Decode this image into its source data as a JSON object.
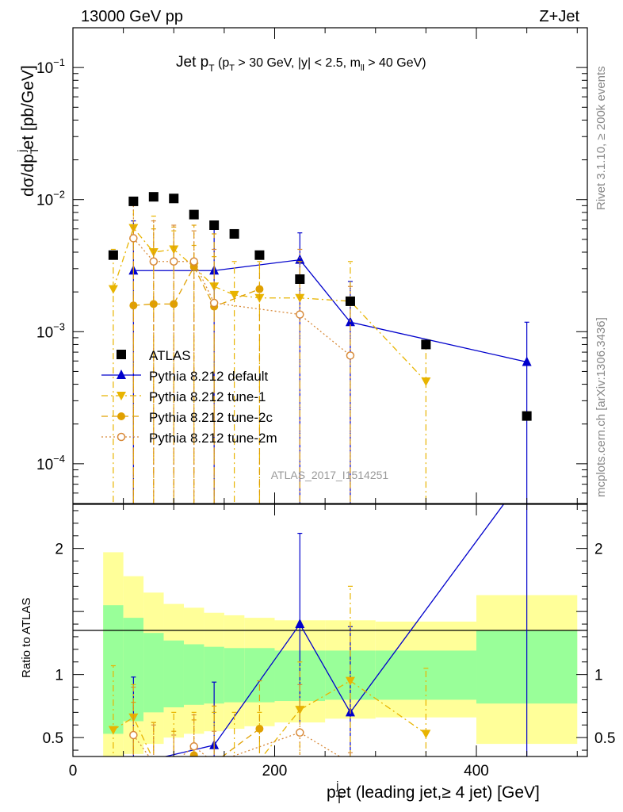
{
  "header": {
    "left": "13000 GeV pp",
    "right": "Z+Jet"
  },
  "side_labels": {
    "rivet": "Rivet 3.1.10, ≥ 200k events",
    "mcplots": "mcplots.cern.ch [arXiv:1306.3436]"
  },
  "chart_data": {
    "type": "scatter",
    "title": "Jet pT (pT > 30 GeV, |y| < 2.5, mll > 40 GeV)",
    "title_parts": {
      "main": "Jet p",
      "sub": "T",
      "cuts": "(p",
      "cuts_sub": "T",
      "cuts_mid": " > 30 GeV, |y| < 2.5, m",
      "cuts_sub2": "ll",
      "cuts_end": " > 40 GeV)"
    },
    "watermark": "ATLAS_2017_I1514251",
    "xlabel": "pTjet (leading jet,≥ 4 jet) [GeV]",
    "xlabel_parts": {
      "p": "p",
      "sup": "j",
      "sub": "T",
      "rest": "et (leading jet,≥ 4 jet) [GeV]"
    },
    "ylabel": "dσ/dpTjet [pb/GeV]",
    "ylabel_parts": {
      "pre": "dσ/dp",
      "sup": "j",
      "sub": "T",
      "rest": "et [pb/GeV]"
    },
    "ratio_ylabel": "Ratio to ATLAS",
    "xlim": [
      0,
      510
    ],
    "ylim_log": [
      5e-05,
      0.2
    ],
    "ratio_ylim": [
      0.35,
      2.35
    ],
    "x_ticks": [
      0,
      200,
      400
    ],
    "y_ticks_labels": [
      {
        "v": 0.0001,
        "base": "10",
        "exp": "−4"
      },
      {
        "v": 0.001,
        "base": "10",
        "exp": "−3"
      },
      {
        "v": 0.01,
        "base": "10",
        "exp": "−2"
      },
      {
        "v": 0.1,
        "base": "10",
        "exp": "−1"
      }
    ],
    "ratio_ticks": [
      0.5,
      1,
      2
    ],
    "ratio_tick_labels": [
      "0.5",
      "1",
      "2"
    ],
    "legend": [
      {
        "label": "ATLAS",
        "color": "#000000",
        "marker": "square"
      },
      {
        "label": "Pythia 8.212 default",
        "color": "#0000cc",
        "marker": "triangle-up"
      },
      {
        "label": "Pythia 8.212 tune-1",
        "color": "#e8b400",
        "marker": "triangle-down"
      },
      {
        "label": "Pythia 8.212 tune-2c",
        "color": "#e0a000",
        "marker": "circle"
      },
      {
        "label": "Pythia 8.212 tune-2m",
        "color": "#d88a3a",
        "marker": "open-circle"
      }
    ],
    "bins": [
      [
        30,
        50
      ],
      [
        50,
        70
      ],
      [
        70,
        90
      ],
      [
        90,
        110
      ],
      [
        110,
        130
      ],
      [
        130,
        150
      ],
      [
        150,
        170
      ],
      [
        170,
        200
      ],
      [
        200,
        250
      ],
      [
        250,
        300
      ],
      [
        300,
        400
      ],
      [
        400,
        500
      ]
    ],
    "atlas": {
      "x": [
        40,
        60,
        80,
        100,
        120,
        140,
        160,
        185,
        225,
        275,
        350,
        450
      ],
      "y": [
        0.0038,
        0.0097,
        0.0105,
        0.0102,
        0.0077,
        0.0064,
        0.0055,
        0.0038,
        0.0025,
        0.0017,
        0.0008,
        0.00023
      ],
      "band_green": [
        [
          0.53,
          1.55
        ],
        [
          0.63,
          1.45
        ],
        [
          0.7,
          1.33
        ],
        [
          0.74,
          1.27
        ],
        [
          0.76,
          1.24
        ],
        [
          0.77,
          1.22
        ],
        [
          0.78,
          1.21
        ],
        [
          0.78,
          1.21
        ],
        [
          0.79,
          1.19
        ],
        [
          0.8,
          1.19
        ],
        [
          0.8,
          1.19
        ],
        [
          0.77,
          1.35
        ]
      ],
      "band_yellow": [
        [
          0.3,
          1.97
        ],
        [
          0.37,
          1.78
        ],
        [
          0.45,
          1.65
        ],
        [
          0.5,
          1.56
        ],
        [
          0.53,
          1.53
        ],
        [
          0.55,
          1.49
        ],
        [
          0.57,
          1.47
        ],
        [
          0.59,
          1.45
        ],
        [
          0.62,
          1.43
        ],
        [
          0.65,
          1.43
        ],
        [
          0.66,
          1.42
        ],
        [
          0.45,
          1.63
        ]
      ]
    },
    "series": [
      {
        "name": "Pythia 8.212 default",
        "color": "#0000cc",
        "marker": "triangle-up",
        "line": "solid",
        "x": [
          60,
          140,
          225,
          275,
          450
        ],
        "y": [
          0.0029,
          0.0029,
          0.0035,
          0.00118,
          0.00059
        ],
        "err_lo": [
          4e-05,
          4e-05,
          4e-05,
          4e-05,
          4e-05
        ],
        "err_hi": [
          0.0069,
          0.0061,
          0.0056,
          0.0024,
          0.00118
        ],
        "ratio": [
          0.29,
          0.44,
          1.4,
          0.7,
          2.6
        ],
        "ratio_lo": [
          0.3,
          0.3,
          0.62,
          0.3,
          0.3
        ],
        "ratio_hi": [
          0.98,
          0.94,
          2.12,
          1.38,
          2.6
        ]
      },
      {
        "name": "Pythia 8.212 tune-1",
        "color": "#e8b400",
        "marker": "triangle-down",
        "line": "dashdot",
        "x": [
          40,
          60,
          80,
          100,
          120,
          140,
          160,
          185,
          225,
          275,
          350
        ],
        "y": [
          0.0021,
          0.0061,
          0.004,
          0.0042,
          0.0031,
          0.0022,
          0.0019,
          0.0018,
          0.0018,
          0.0017,
          0.00042
        ],
        "err_lo": [
          4e-05,
          4e-05,
          4e-05,
          4e-05,
          4e-05,
          4e-05,
          4e-05,
          4e-05,
          4e-05,
          4e-05,
          4e-05
        ],
        "err_hi": [
          0.0042,
          0.0099,
          0.0075,
          0.0058,
          0.0045,
          0.0037,
          0.0034,
          0.0034,
          0.0034,
          0.0034,
          0.00082
        ],
        "ratio": [
          0.56,
          0.66,
          0.32,
          0.32,
          0.32,
          0.32,
          0.32,
          0.32,
          0.72,
          0.95,
          0.53
        ],
        "ratio_lo": [
          0.3,
          0.3,
          0.3,
          0.3,
          0.3,
          0.3,
          0.3,
          0.3,
          0.3,
          0.35,
          0.3
        ],
        "ratio_hi": [
          1.07,
          0.92,
          0.62,
          0.7,
          0.7,
          0.7,
          0.7,
          0.7,
          1.1,
          1.7,
          1.05
        ]
      },
      {
        "name": "Pythia 8.212 tune-2c",
        "color": "#e0a000",
        "marker": "circle",
        "line": "dashed",
        "x": [
          60,
          80,
          100,
          120,
          140,
          185
        ],
        "y": [
          0.00158,
          0.00162,
          0.00162,
          0.0031,
          0.00155,
          0.0021
        ],
        "err_lo": [
          4e-05,
          4e-05,
          4e-05,
          4e-05,
          4e-05,
          4e-05
        ],
        "err_hi": [
          0.0061,
          0.006,
          0.0062,
          0.0064,
          0.0055,
          0.0037
        ],
        "ratio": [
          0.3,
          0.3,
          0.3,
          0.36,
          0.3,
          0.57
        ],
        "ratio_lo": [
          0.3,
          0.3,
          0.3,
          0.3,
          0.3,
          0.3
        ],
        "ratio_hi": [
          0.78,
          0.62,
          0.55,
          0.64,
          0.75,
          0.95
        ]
      },
      {
        "name": "Pythia 8.212 tune-2m",
        "color": "#d88a3a",
        "marker": "open-circle",
        "line": "dotted",
        "x": [
          60,
          80,
          100,
          120,
          140,
          225,
          275
        ],
        "y": [
          0.0051,
          0.0034,
          0.0034,
          0.0034,
          0.00165,
          0.00135,
          0.00066
        ],
        "err_lo": [
          4e-05,
          4e-05,
          4e-05,
          4e-05,
          4e-05,
          4e-05,
          4e-05
        ],
        "err_hi": [
          0.0095,
          0.0069,
          0.0064,
          0.0058,
          0.0042,
          0.0042,
          0.0022
        ],
        "ratio": [
          0.52,
          0.3,
          0.3,
          0.43,
          0.3,
          0.54,
          0.3
        ],
        "ratio_lo": [
          0.3,
          0.3,
          0.3,
          0.3,
          0.3,
          0.3,
          0.3
        ],
        "ratio_hi": [
          0.9,
          0.6,
          0.52,
          0.68,
          0.55,
          0.92,
          0.38
        ]
      }
    ]
  }
}
